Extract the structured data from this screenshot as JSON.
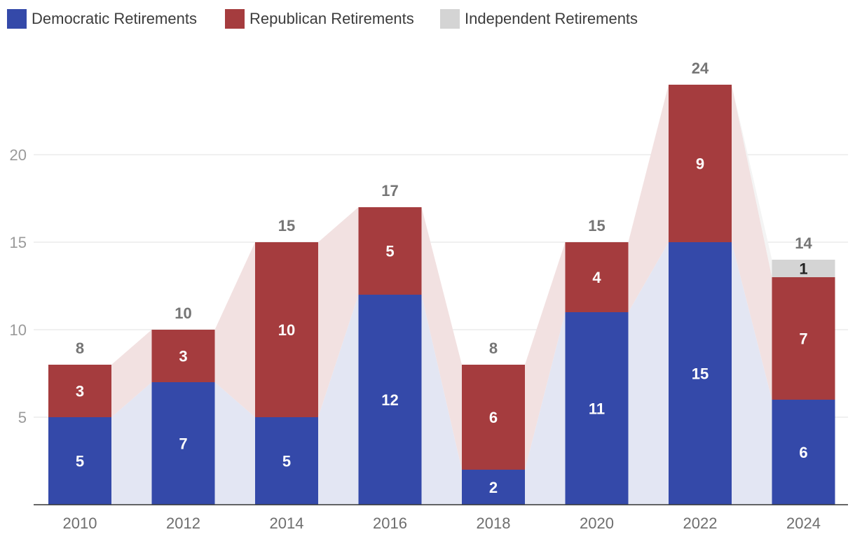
{
  "chart_data": {
    "type": "bar",
    "stacked": true,
    "categories": [
      "2010",
      "2012",
      "2014",
      "2016",
      "2018",
      "2020",
      "2022",
      "2024"
    ],
    "series": [
      {
        "name": "Democratic Retirements",
        "color": "#3449a9",
        "band_color": "#e3e6f3",
        "values": [
          5,
          7,
          5,
          12,
          2,
          11,
          15,
          6
        ]
      },
      {
        "name": "Republican Retirements",
        "color": "#a53c3e",
        "band_color": "#f2e1e1",
        "values": [
          3,
          3,
          10,
          5,
          6,
          4,
          9,
          7
        ]
      },
      {
        "name": "Independent Retirements",
        "color": "#d4d4d4",
        "band_color": "#f4f4f4",
        "values": [
          0,
          0,
          0,
          0,
          0,
          0,
          0,
          1
        ]
      }
    ],
    "totals": [
      8,
      10,
      15,
      17,
      8,
      15,
      24,
      14
    ],
    "y_ticks": [
      5,
      10,
      15,
      20
    ],
    "ylim": [
      0,
      24.5
    ],
    "grid": true,
    "legend_position": "top-left",
    "title": "",
    "xlabel": "",
    "ylabel": ""
  }
}
